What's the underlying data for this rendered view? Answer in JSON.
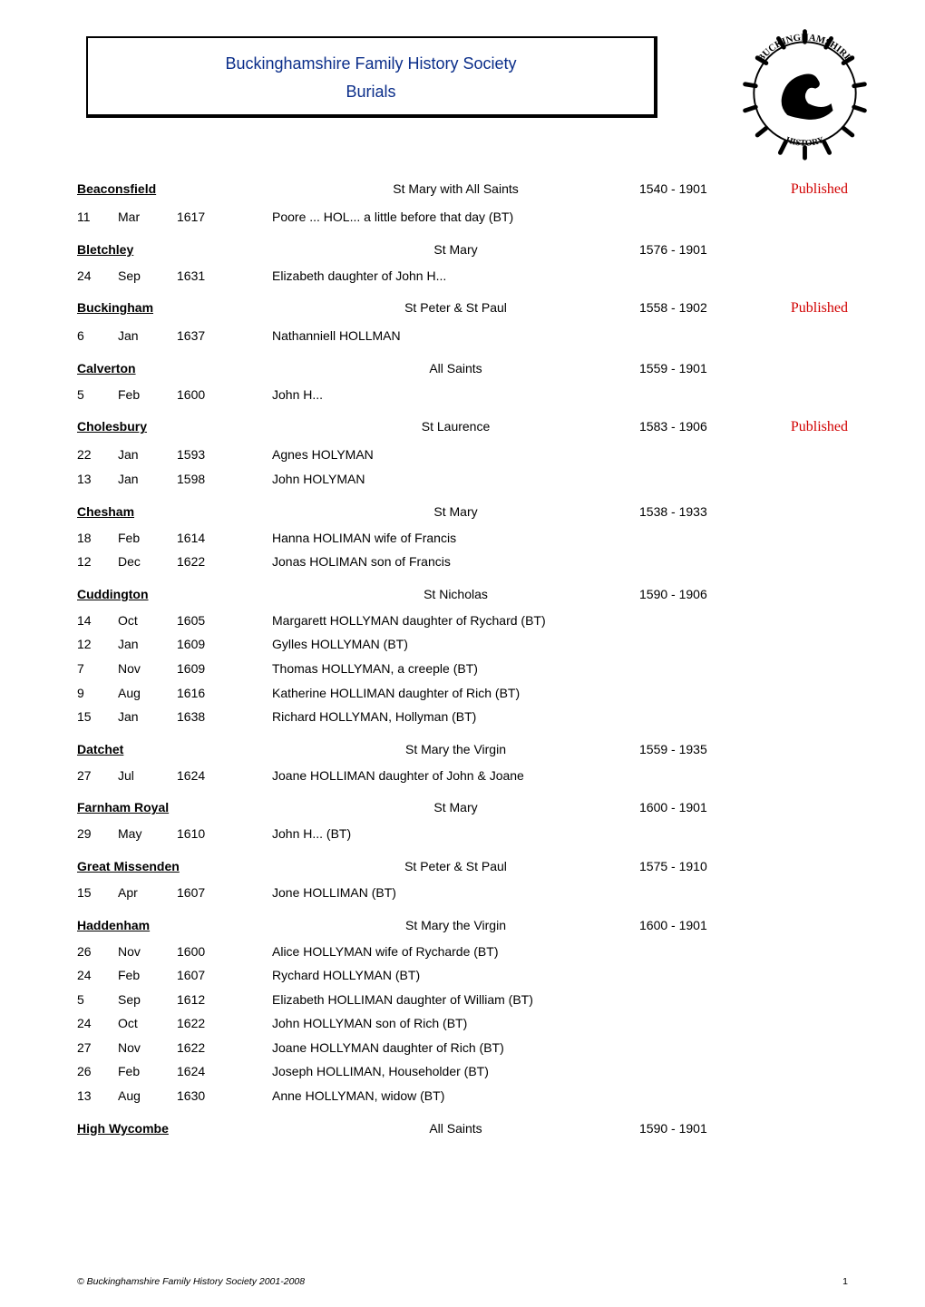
{
  "header": {
    "line1": "Buckinghamshire Family History Society",
    "line2": "Burials"
  },
  "footer": {
    "copyright": "© Buckinghamshire Family History Society 2001-2008",
    "page_num": "1"
  },
  "logo": {
    "top_text": "BUCKINGHAMSHIRE",
    "bottom_text": "FAMILY HISTORY SOCIETY"
  },
  "sections": [
    {
      "parish": "Beaconsfield",
      "church": "St Mary with All Saints",
      "year_from": "1540",
      "year_to": "1901",
      "published": "Published",
      "rows": [
        {
          "day": "11",
          "month": "Mar",
          "year": "1617",
          "item": "Poore ... HOL... a little before that day (BT)"
        }
      ]
    },
    {
      "parish": "Bletchley",
      "church": "St Mary",
      "year_from": "1576",
      "year_to": "1901",
      "published": "",
      "rows": [
        {
          "day": "24",
          "month": "Sep",
          "year": "1631",
          "item": "Elizabeth daughter of John H..."
        }
      ]
    },
    {
      "parish": "Buckingham",
      "church": "St Peter & St Paul",
      "year_from": "1558",
      "year_to": "1902",
      "published": "Published",
      "rows": [
        {
          "day": "6",
          "month": "Jan",
          "year": "1637",
          "item": "Nathanniell HOLLMAN"
        }
      ]
    },
    {
      "parish": "Calverton",
      "church": "All Saints",
      "year_from": "1559",
      "year_to": "1901",
      "published": "",
      "rows": [
        {
          "day": "5",
          "month": "Feb",
          "year": "1600",
          "item": "John H..."
        }
      ]
    },
    {
      "parish": "Cholesbury",
      "church": "St Laurence",
      "year_from": "1583",
      "year_to": "1906",
      "published": "Published",
      "rows": [
        {
          "day": "22",
          "month": "Jan",
          "year": "1593",
          "item": "Agnes HOLYMAN"
        },
        {
          "day": "13",
          "month": "Jan",
          "year": "1598",
          "item": "John HOLYMAN"
        }
      ]
    },
    {
      "parish": "Chesham",
      "church": "St Mary",
      "year_from": "1538",
      "year_to": "1933",
      "published": "",
      "rows": [
        {
          "day": "18",
          "month": "Feb",
          "year": "1614",
          "item": "Hanna HOLIMAN wife of Francis"
        },
        {
          "day": "12",
          "month": "Dec",
          "year": "1622",
          "item": "Jonas HOLIMAN son of Francis"
        }
      ]
    },
    {
      "parish": "Cuddington",
      "church": "St Nicholas",
      "year_from": "1590",
      "year_to": "1906",
      "published": "",
      "rows": [
        {
          "day": "14",
          "month": "Oct",
          "year": "1605",
          "item": "Margarett HOLLYMAN daughter of Rychard (BT)"
        },
        {
          "day": "12",
          "month": "Jan",
          "year": "1609",
          "item": "Gylles HOLLYMAN (BT)"
        },
        {
          "day": "7",
          "month": "Nov",
          "year": "1609",
          "item": "Thomas HOLLYMAN, a creeple (BT)"
        },
        {
          "day": "9",
          "month": "Aug",
          "year": "1616",
          "item": "Katherine HOLLIMAN daughter of Rich (BT)"
        },
        {
          "day": "15",
          "month": "Jan",
          "year": "1638",
          "item": "Richard HOLLYMAN, Hollyman (BT)"
        }
      ]
    },
    {
      "parish": "Datchet",
      "church": "St Mary the Virgin",
      "year_from": "1559",
      "year_to": "1935",
      "published": "",
      "rows": [
        {
          "day": "27",
          "month": "Jul",
          "year": "1624",
          "item": "Joane HOLLIMAN daughter of John & Joane"
        }
      ]
    },
    {
      "parish": "Farnham Royal",
      "church": "St Mary",
      "year_from": "1600",
      "year_to": "1901",
      "published": "",
      "rows": [
        {
          "day": "29",
          "month": "May",
          "year": "1610",
          "item": "John H... (BT)"
        }
      ]
    },
    {
      "parish": "Great Missenden",
      "church": "St Peter & St Paul",
      "year_from": "1575",
      "year_to": "1910",
      "published": "",
      "rows": [
        {
          "day": "15",
          "month": "Apr",
          "year": "1607",
          "item": "Jone HOLLIMAN (BT)"
        }
      ]
    },
    {
      "parish": "Haddenham",
      "church": "St Mary the Virgin",
      "year_from": "1600",
      "year_to": "1901",
      "published": "",
      "rows": [
        {
          "day": "26",
          "month": "Nov",
          "year": "1600",
          "item": "Alice HOLLYMAN wife of Rycharde (BT)"
        },
        {
          "day": "24",
          "month": "Feb",
          "year": "1607",
          "item": "Rychard HOLLYMAN (BT)"
        },
        {
          "day": "5",
          "month": "Sep",
          "year": "1612",
          "item": "Elizabeth HOLLIMAN daughter of William (BT)"
        },
        {
          "day": "24",
          "month": "Oct",
          "year": "1622",
          "item": "John HOLLYMAN son of Rich (BT)"
        },
        {
          "day": "27",
          "month": "Nov",
          "year": "1622",
          "item": "Joane HOLLYMAN daughter of Rich (BT)"
        },
        {
          "day": "26",
          "month": "Feb",
          "year": "1624",
          "item": "Joseph HOLLIMAN, Householder (BT)"
        },
        {
          "day": "13",
          "month": "Aug",
          "year": "1630",
          "item": "Anne HOLLYMAN, widow (BT)"
        }
      ]
    },
    {
      "parish": "High Wycombe",
      "church": "All Saints",
      "year_from": "1590",
      "year_to": "1901",
      "published": "",
      "rows": []
    }
  ]
}
